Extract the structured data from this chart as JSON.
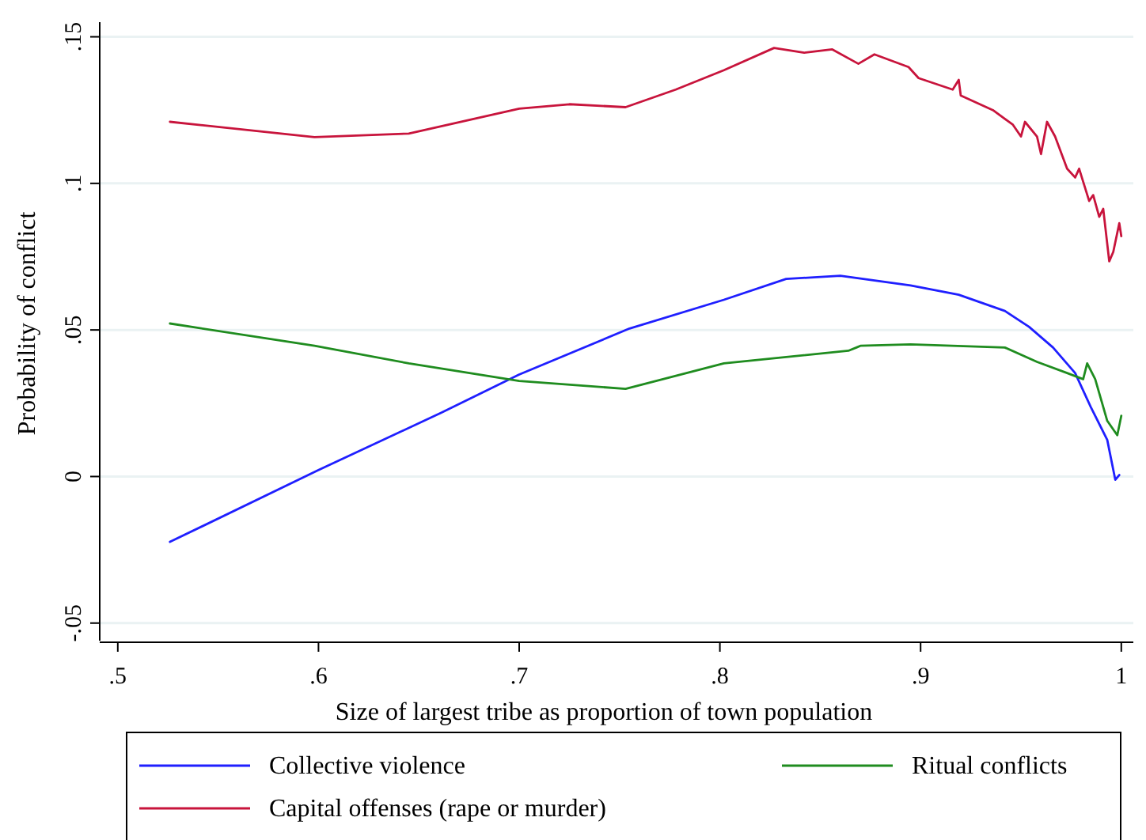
{
  "chart_data": {
    "type": "line",
    "xlabel": "Size of largest tribe as proportion of town population",
    "ylabel": "Probability of conflict",
    "xlim": [
      0.491,
      1.006
    ],
    "ylim": [
      -0.056,
      0.155
    ],
    "xticks": [
      {
        "value": 0.5,
        "label": ".5"
      },
      {
        "value": 0.6,
        "label": ".6"
      },
      {
        "value": 0.7,
        "label": ".7"
      },
      {
        "value": 0.8,
        "label": ".8"
      },
      {
        "value": 0.9,
        "label": ".9"
      },
      1
    ],
    "yticks": [
      {
        "value": -0.05,
        "label": "-.05"
      },
      0,
      {
        "value": 0.05,
        "label": ".05"
      },
      {
        "value": 0.1,
        "label": ".1"
      },
      {
        "value": 0.15,
        "label": ".15"
      }
    ],
    "grid": "y",
    "legend": "bottom",
    "marker": "none",
    "line_style": "solid",
    "series": [
      {
        "name": "Collective violence",
        "color": "#1f1fff",
        "x": [
          0.526,
          0.6,
          0.661,
          0.7,
          0.755,
          0.802,
          0.833,
          0.86,
          0.895,
          0.919,
          0.942,
          0.954,
          0.966,
          0.977,
          0.985,
          0.993,
          0.997,
          0.999
        ],
        "values": [
          -0.0223,
          0.0022,
          0.0217,
          0.0348,
          0.0505,
          0.0603,
          0.0674,
          0.0685,
          0.0652,
          0.062,
          0.0565,
          0.0511,
          0.044,
          0.0353,
          0.0234,
          0.0125,
          -0.0011,
          0.0005
        ]
      },
      {
        "name": "Ritual conflicts",
        "color": "#1f8c1f",
        "x": [
          0.526,
          0.598,
          0.645,
          0.7,
          0.753,
          0.802,
          0.864,
          0.868,
          0.87,
          0.895,
          0.942,
          0.958,
          0.973,
          0.981,
          0.983,
          0.987,
          0.993,
          0.998,
          1.0
        ],
        "values": [
          0.0522,
          0.0446,
          0.0386,
          0.0326,
          0.0299,
          0.0386,
          0.0429,
          0.044,
          0.0446,
          0.0451,
          0.044,
          0.0391,
          0.0353,
          0.0332,
          0.0386,
          0.0332,
          0.019,
          0.0141,
          0.0207
        ]
      },
      {
        "name": "Capital offenses (rape or murder)",
        "color": "#c8143c",
        "x": [
          0.526,
          0.598,
          0.645,
          0.7,
          0.725,
          0.753,
          0.778,
          0.802,
          0.827,
          0.842,
          0.856,
          0.869,
          0.877,
          0.894,
          0.899,
          0.916,
          0.919,
          0.92,
          0.936,
          0.946,
          0.95,
          0.952,
          0.958,
          0.96,
          0.963,
          0.967,
          0.973,
          0.977,
          0.979,
          0.984,
          0.986,
          0.989,
          0.991,
          0.994,
          0.996,
          0.999,
          1.0
        ],
        "values": [
          0.121,
          0.1158,
          0.117,
          0.1255,
          0.127,
          0.126,
          0.132,
          0.1386,
          0.1462,
          0.1446,
          0.1457,
          0.1408,
          0.144,
          0.1397,
          0.1359,
          0.132,
          0.1353,
          0.13,
          0.125,
          0.12,
          0.116,
          0.121,
          0.116,
          0.11,
          0.121,
          0.116,
          0.105,
          0.102,
          0.105,
          0.094,
          0.096,
          0.0886,
          0.0913,
          0.0734,
          0.0766,
          0.0864,
          0.082
        ]
      }
    ]
  }
}
